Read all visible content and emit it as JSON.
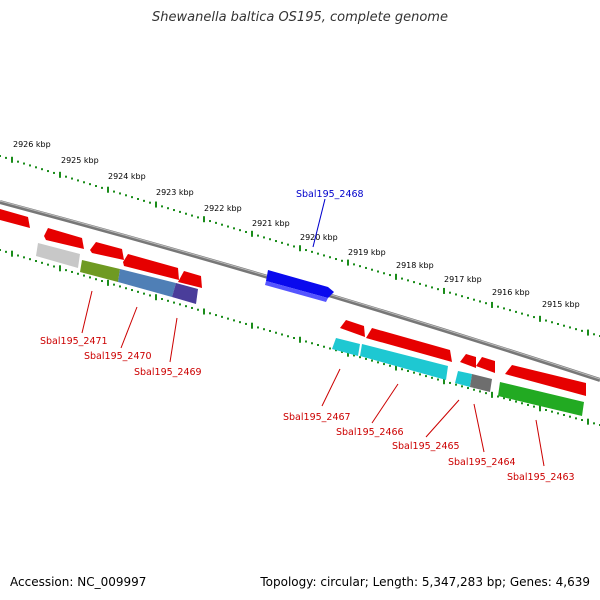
{
  "title": "Shewanella baltica OS195, complete genome",
  "footer": {
    "accession": "Accession: NC_009997",
    "summary": "Topology: circular; Length: 5,347,283 bp; Genes: 4,639"
  },
  "colors": {
    "backbone": "#888888",
    "ruler": "#1a8c1a",
    "label_forward": "#0000cc",
    "label_reverse": "#cc0000"
  },
  "scale_labels": [
    "2926 kbp",
    "2925 kbp",
    "2924 kbp",
    "2923 kbp",
    "2922 kbp",
    "2921 kbp",
    "2920 kbp",
    "2919 kbp",
    "2918 kbp",
    "2917 kbp",
    "2916 kbp",
    "2915 kbp"
  ],
  "gene_labels": [
    {
      "id": "g2468",
      "text": "Sbal195_2468",
      "strand": "forward"
    },
    {
      "id": "g2471",
      "text": "Sbal195_2471",
      "strand": "reverse"
    },
    {
      "id": "g2470",
      "text": "Sbal195_2470",
      "strand": "reverse"
    },
    {
      "id": "g2469",
      "text": "Sbal195_2469",
      "strand": "reverse"
    },
    {
      "id": "g2467",
      "text": "Sbal195_2467",
      "strand": "reverse"
    },
    {
      "id": "g2466",
      "text": "Sbal195_2466",
      "strand": "reverse"
    },
    {
      "id": "g2465",
      "text": "Sbal195_2465",
      "strand": "reverse"
    },
    {
      "id": "g2464",
      "text": "Sbal195_2464",
      "strand": "reverse"
    },
    {
      "id": "g2463",
      "text": "Sbal195_2463",
      "strand": "reverse"
    }
  ]
}
